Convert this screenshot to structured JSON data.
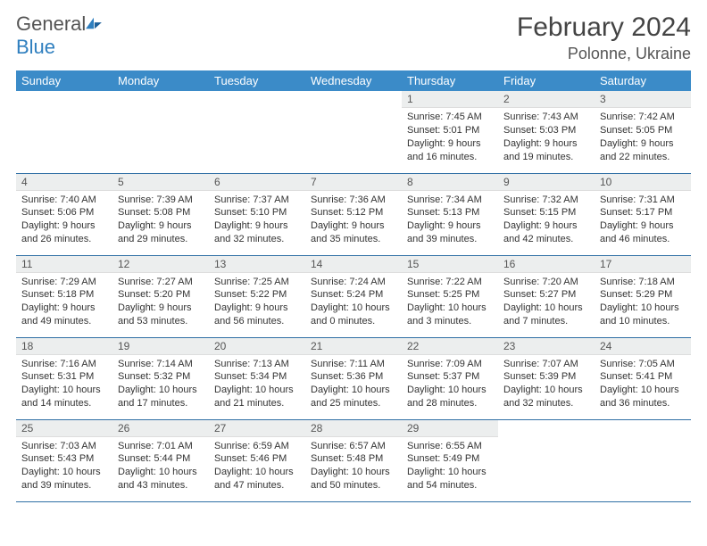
{
  "logo": {
    "text1": "General",
    "text2": "Blue"
  },
  "title": "February 2024",
  "location": "Polonne, Ukraine",
  "day_headers": [
    "Sunday",
    "Monday",
    "Tuesday",
    "Wednesday",
    "Thursday",
    "Friday",
    "Saturday"
  ],
  "colors": {
    "header_bg": "#3b8bc8",
    "row_border": "#2f6fa5",
    "daynum_bg": "#eceeee",
    "logo_blue": "#2f7fbf"
  },
  "typography": {
    "title_fontsize": 30,
    "location_fontsize": 18,
    "header_fontsize": 13,
    "daynum_fontsize": 12,
    "body_fontsize": 11
  },
  "weeks": [
    [
      null,
      null,
      null,
      null,
      {
        "n": "1",
        "sr": "7:45 AM",
        "ss": "5:01 PM",
        "dl": "9 hours and 16 minutes."
      },
      {
        "n": "2",
        "sr": "7:43 AM",
        "ss": "5:03 PM",
        "dl": "9 hours and 19 minutes."
      },
      {
        "n": "3",
        "sr": "7:42 AM",
        "ss": "5:05 PM",
        "dl": "9 hours and 22 minutes."
      }
    ],
    [
      {
        "n": "4",
        "sr": "7:40 AM",
        "ss": "5:06 PM",
        "dl": "9 hours and 26 minutes."
      },
      {
        "n": "5",
        "sr": "7:39 AM",
        "ss": "5:08 PM",
        "dl": "9 hours and 29 minutes."
      },
      {
        "n": "6",
        "sr": "7:37 AM",
        "ss": "5:10 PM",
        "dl": "9 hours and 32 minutes."
      },
      {
        "n": "7",
        "sr": "7:36 AM",
        "ss": "5:12 PM",
        "dl": "9 hours and 35 minutes."
      },
      {
        "n": "8",
        "sr": "7:34 AM",
        "ss": "5:13 PM",
        "dl": "9 hours and 39 minutes."
      },
      {
        "n": "9",
        "sr": "7:32 AM",
        "ss": "5:15 PM",
        "dl": "9 hours and 42 minutes."
      },
      {
        "n": "10",
        "sr": "7:31 AM",
        "ss": "5:17 PM",
        "dl": "9 hours and 46 minutes."
      }
    ],
    [
      {
        "n": "11",
        "sr": "7:29 AM",
        "ss": "5:18 PM",
        "dl": "9 hours and 49 minutes."
      },
      {
        "n": "12",
        "sr": "7:27 AM",
        "ss": "5:20 PM",
        "dl": "9 hours and 53 minutes."
      },
      {
        "n": "13",
        "sr": "7:25 AM",
        "ss": "5:22 PM",
        "dl": "9 hours and 56 minutes."
      },
      {
        "n": "14",
        "sr": "7:24 AM",
        "ss": "5:24 PM",
        "dl": "10 hours and 0 minutes."
      },
      {
        "n": "15",
        "sr": "7:22 AM",
        "ss": "5:25 PM",
        "dl": "10 hours and 3 minutes."
      },
      {
        "n": "16",
        "sr": "7:20 AM",
        "ss": "5:27 PM",
        "dl": "10 hours and 7 minutes."
      },
      {
        "n": "17",
        "sr": "7:18 AM",
        "ss": "5:29 PM",
        "dl": "10 hours and 10 minutes."
      }
    ],
    [
      {
        "n": "18",
        "sr": "7:16 AM",
        "ss": "5:31 PM",
        "dl": "10 hours and 14 minutes."
      },
      {
        "n": "19",
        "sr": "7:14 AM",
        "ss": "5:32 PM",
        "dl": "10 hours and 17 minutes."
      },
      {
        "n": "20",
        "sr": "7:13 AM",
        "ss": "5:34 PM",
        "dl": "10 hours and 21 minutes."
      },
      {
        "n": "21",
        "sr": "7:11 AM",
        "ss": "5:36 PM",
        "dl": "10 hours and 25 minutes."
      },
      {
        "n": "22",
        "sr": "7:09 AM",
        "ss": "5:37 PM",
        "dl": "10 hours and 28 minutes."
      },
      {
        "n": "23",
        "sr": "7:07 AM",
        "ss": "5:39 PM",
        "dl": "10 hours and 32 minutes."
      },
      {
        "n": "24",
        "sr": "7:05 AM",
        "ss": "5:41 PM",
        "dl": "10 hours and 36 minutes."
      }
    ],
    [
      {
        "n": "25",
        "sr": "7:03 AM",
        "ss": "5:43 PM",
        "dl": "10 hours and 39 minutes."
      },
      {
        "n": "26",
        "sr": "7:01 AM",
        "ss": "5:44 PM",
        "dl": "10 hours and 43 minutes."
      },
      {
        "n": "27",
        "sr": "6:59 AM",
        "ss": "5:46 PM",
        "dl": "10 hours and 47 minutes."
      },
      {
        "n": "28",
        "sr": "6:57 AM",
        "ss": "5:48 PM",
        "dl": "10 hours and 50 minutes."
      },
      {
        "n": "29",
        "sr": "6:55 AM",
        "ss": "5:49 PM",
        "dl": "10 hours and 54 minutes."
      },
      null,
      null
    ]
  ],
  "labels": {
    "sunrise": "Sunrise:",
    "sunset": "Sunset:",
    "daylight": "Daylight:"
  }
}
